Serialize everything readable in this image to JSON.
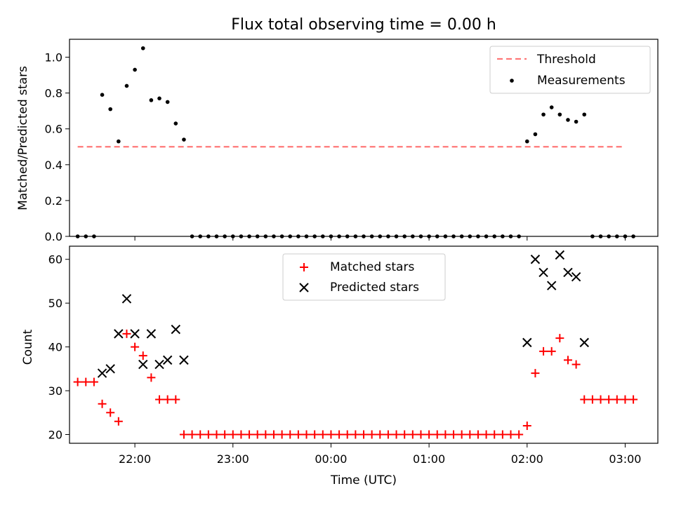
{
  "figure": {
    "title": "Flux total observing time = 0.00 h",
    "xlabel": "Time (UTC)",
    "x_ticks": [
      "22:00",
      "23:00",
      "00:00",
      "01:00",
      "02:00",
      "03:00"
    ]
  },
  "chart_data": [
    {
      "type": "scatter",
      "ylabel": "Matched/Predicted stars",
      "ylim": [
        0,
        1.1
      ],
      "y_ticks": [
        "0.0",
        "0.2",
        "0.4",
        "0.6",
        "0.8",
        "1.0"
      ],
      "x_range": [
        "21:20",
        "03:20"
      ],
      "legend_position": "top-right",
      "series": [
        {
          "name": "Threshold",
          "kind": "dashed-line",
          "color": "#ff7777",
          "x": [
            "21:25",
            "03:00"
          ],
          "y": [
            0.5,
            0.5
          ]
        },
        {
          "name": "Measurements",
          "kind": "dots",
          "color": "#000000",
          "points": [
            [
              "21:25",
              0.0
            ],
            [
              "21:30",
              0.0
            ],
            [
              "21:35",
              0.0
            ],
            [
              "21:40",
              0.79
            ],
            [
              "21:45",
              0.71
            ],
            [
              "21:50",
              0.53
            ],
            [
              "21:55",
              0.84
            ],
            [
              "22:00",
              0.93
            ],
            [
              "22:05",
              1.05
            ],
            [
              "22:10",
              0.76
            ],
            [
              "22:15",
              0.77
            ],
            [
              "22:20",
              0.75
            ],
            [
              "22:25",
              0.63
            ],
            [
              "22:30",
              0.54
            ],
            [
              "22:35",
              0.0
            ],
            [
              "22:40",
              0.0
            ],
            [
              "22:45",
              0.0
            ],
            [
              "22:50",
              0.0
            ],
            [
              "22:55",
              0.0
            ],
            [
              "23:00",
              0.0
            ],
            [
              "23:05",
              0.0
            ],
            [
              "23:10",
              0.0
            ],
            [
              "23:15",
              0.0
            ],
            [
              "23:20",
              0.0
            ],
            [
              "23:25",
              0.0
            ],
            [
              "23:30",
              0.0
            ],
            [
              "23:35",
              0.0
            ],
            [
              "23:40",
              0.0
            ],
            [
              "23:45",
              0.0
            ],
            [
              "23:50",
              0.0
            ],
            [
              "23:55",
              0.0
            ],
            [
              "00:00",
              0.0
            ],
            [
              "00:05",
              0.0
            ],
            [
              "00:10",
              0.0
            ],
            [
              "00:15",
              0.0
            ],
            [
              "00:20",
              0.0
            ],
            [
              "00:25",
              0.0
            ],
            [
              "00:30",
              0.0
            ],
            [
              "00:35",
              0.0
            ],
            [
              "00:40",
              0.0
            ],
            [
              "00:45",
              0.0
            ],
            [
              "00:50",
              0.0
            ],
            [
              "00:55",
              0.0
            ],
            [
              "01:00",
              0.0
            ],
            [
              "01:05",
              0.0
            ],
            [
              "01:10",
              0.0
            ],
            [
              "01:15",
              0.0
            ],
            [
              "01:20",
              0.0
            ],
            [
              "01:25",
              0.0
            ],
            [
              "01:30",
              0.0
            ],
            [
              "01:35",
              0.0
            ],
            [
              "01:40",
              0.0
            ],
            [
              "01:45",
              0.0
            ],
            [
              "01:50",
              0.0
            ],
            [
              "01:55",
              0.0
            ],
            [
              "02:00",
              0.53
            ],
            [
              "02:05",
              0.57
            ],
            [
              "02:10",
              0.68
            ],
            [
              "02:15",
              0.72
            ],
            [
              "02:20",
              0.68
            ],
            [
              "02:25",
              0.65
            ],
            [
              "02:30",
              0.64
            ],
            [
              "02:35",
              0.68
            ],
            [
              "02:40",
              0.0
            ],
            [
              "02:45",
              0.0
            ],
            [
              "02:50",
              0.0
            ],
            [
              "02:55",
              0.0
            ],
            [
              "03:00",
              0.0
            ],
            [
              "03:05",
              0.0
            ]
          ]
        }
      ]
    },
    {
      "type": "scatter",
      "ylabel": "Count",
      "ylim": [
        18,
        63
      ],
      "y_ticks": [
        "20",
        "30",
        "40",
        "50",
        "60"
      ],
      "x_range": [
        "21:20",
        "03:20"
      ],
      "legend_position": "top-center",
      "series": [
        {
          "name": "Matched stars",
          "marker": "+",
          "color": "#ff0000",
          "points": [
            [
              "21:25",
              32
            ],
            [
              "21:30",
              32
            ],
            [
              "21:35",
              32
            ],
            [
              "21:40",
              27
            ],
            [
              "21:45",
              25
            ],
            [
              "21:50",
              23
            ],
            [
              "21:55",
              43
            ],
            [
              "22:00",
              40
            ],
            [
              "22:05",
              38
            ],
            [
              "22:10",
              33
            ],
            [
              "22:15",
              28
            ],
            [
              "22:20",
              28
            ],
            [
              "22:25",
              28
            ],
            [
              "22:30",
              20
            ],
            [
              "22:35",
              20
            ],
            [
              "22:40",
              20
            ],
            [
              "22:45",
              20
            ],
            [
              "22:50",
              20
            ],
            [
              "22:55",
              20
            ],
            [
              "23:00",
              20
            ],
            [
              "23:05",
              20
            ],
            [
              "23:10",
              20
            ],
            [
              "23:15",
              20
            ],
            [
              "23:20",
              20
            ],
            [
              "23:25",
              20
            ],
            [
              "23:30",
              20
            ],
            [
              "23:35",
              20
            ],
            [
              "23:40",
              20
            ],
            [
              "23:45",
              20
            ],
            [
              "23:50",
              20
            ],
            [
              "23:55",
              20
            ],
            [
              "00:00",
              20
            ],
            [
              "00:05",
              20
            ],
            [
              "00:10",
              20
            ],
            [
              "00:15",
              20
            ],
            [
              "00:20",
              20
            ],
            [
              "00:25",
              20
            ],
            [
              "00:30",
              20
            ],
            [
              "00:35",
              20
            ],
            [
              "00:40",
              20
            ],
            [
              "00:45",
              20
            ],
            [
              "00:50",
              20
            ],
            [
              "00:55",
              20
            ],
            [
              "01:00",
              20
            ],
            [
              "01:05",
              20
            ],
            [
              "01:10",
              20
            ],
            [
              "01:15",
              20
            ],
            [
              "01:20",
              20
            ],
            [
              "01:25",
              20
            ],
            [
              "01:30",
              20
            ],
            [
              "01:35",
              20
            ],
            [
              "01:40",
              20
            ],
            [
              "01:45",
              20
            ],
            [
              "01:50",
              20
            ],
            [
              "01:55",
              20
            ],
            [
              "02:00",
              22
            ],
            [
              "02:05",
              34
            ],
            [
              "02:10",
              39
            ],
            [
              "02:15",
              39
            ],
            [
              "02:20",
              42
            ],
            [
              "02:25",
              37
            ],
            [
              "02:30",
              36
            ],
            [
              "02:35",
              28
            ],
            [
              "02:40",
              28
            ],
            [
              "02:45",
              28
            ],
            [
              "02:50",
              28
            ],
            [
              "02:55",
              28
            ],
            [
              "03:00",
              28
            ],
            [
              "03:05",
              28
            ]
          ]
        },
        {
          "name": "Predicted stars",
          "marker": "x",
          "color": "#000000",
          "points": [
            [
              "21:40",
              34
            ],
            [
              "21:45",
              35
            ],
            [
              "21:50",
              43
            ],
            [
              "21:55",
              51
            ],
            [
              "22:00",
              43
            ],
            [
              "22:05",
              36
            ],
            [
              "22:10",
              43
            ],
            [
              "22:15",
              36
            ],
            [
              "22:20",
              37
            ],
            [
              "22:25",
              44
            ],
            [
              "22:30",
              37
            ],
            [
              "02:00",
              41
            ],
            [
              "02:05",
              60
            ],
            [
              "02:10",
              57
            ],
            [
              "02:15",
              54
            ],
            [
              "02:20",
              61
            ],
            [
              "02:25",
              57
            ],
            [
              "02:30",
              56
            ],
            [
              "02:35",
              41
            ]
          ]
        }
      ]
    }
  ]
}
